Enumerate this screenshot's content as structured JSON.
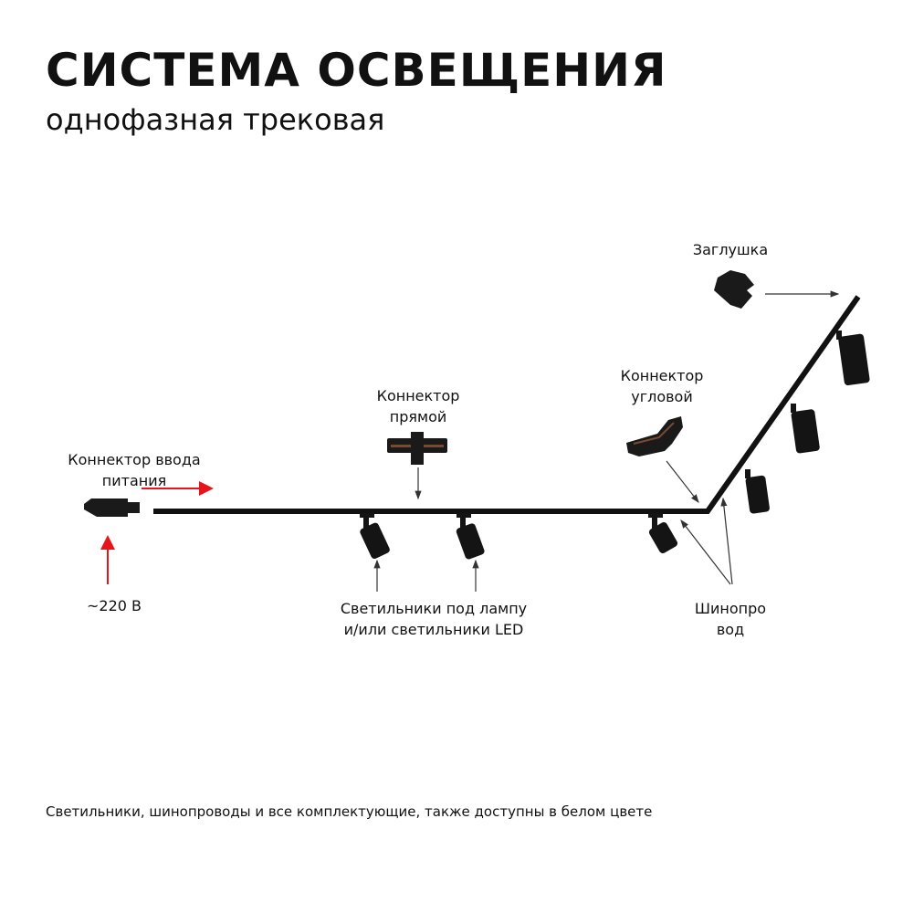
{
  "header": {
    "title": "СИСТЕМА ОСВЕЩЕНИЯ",
    "subtitle": "однофазная трековая"
  },
  "labels": {
    "end_cap": "Заглушка",
    "corner_connector": [
      "Коннектор",
      "угловой"
    ],
    "straight_connector": [
      "Коннектор",
      "прямой"
    ],
    "power_connector": [
      "Коннектор ввода",
      "питания"
    ],
    "voltage": "~220 В",
    "luminaires": [
      "Светильники под лампу",
      "и/или светильники LED"
    ],
    "busbar": [
      "Шинопро",
      "вод"
    ]
  },
  "footer": "Светильники, шинопроводы и все комплектующие, также доступны в белом цвете",
  "colors": {
    "track": "#111111",
    "power_arrow": "#e8141b",
    "pointer": "#333333"
  }
}
